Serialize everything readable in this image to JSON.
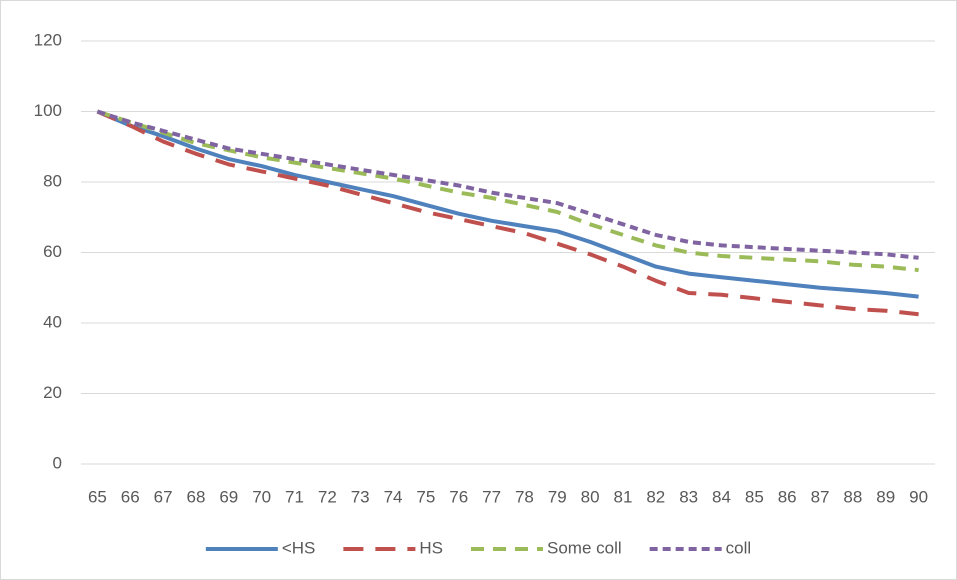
{
  "chart_data": {
    "type": "line",
    "categories": [
      "65",
      "66",
      "67",
      "68",
      "69",
      "70",
      "71",
      "72",
      "73",
      "74",
      "75",
      "76",
      "77",
      "78",
      "79",
      "80",
      "81",
      "82",
      "83",
      "84",
      "85",
      "86",
      "87",
      "88",
      "89",
      "90"
    ],
    "series": [
      {
        "name": "<HS",
        "color": "#4f81bd",
        "dash": "solid",
        "values": [
          100,
          96,
          93,
          89.5,
          86.5,
          84.5,
          82,
          80,
          78,
          76,
          73.5,
          71,
          69,
          67.5,
          66,
          63,
          59.5,
          56,
          54,
          53,
          52,
          51,
          50,
          49.3,
          48.5,
          47.5
        ]
      },
      {
        "name": "HS",
        "color": "#c0504d",
        "dash": "long-dash",
        "values": [
          100,
          96,
          91.5,
          88,
          85,
          83,
          81,
          79,
          76.5,
          74,
          71.5,
          69.5,
          67.5,
          65.5,
          62.5,
          59.5,
          56,
          52,
          48.5,
          48,
          47,
          46,
          45,
          44,
          43.5,
          42.5
        ]
      },
      {
        "name": "Some coll",
        "color": "#9bbb59",
        "dash": "dash",
        "values": [
          100,
          97,
          94,
          91,
          89,
          87,
          85.5,
          84,
          82.5,
          81,
          79,
          77,
          75.5,
          73.5,
          71.5,
          68,
          65,
          62,
          60,
          59,
          58.5,
          58,
          57.5,
          56.5,
          56,
          55
        ]
      },
      {
        "name": "coll",
        "color": "#8064a2",
        "dash": "short-dash",
        "values": [
          100,
          97,
          94.5,
          92,
          89.5,
          88,
          86.5,
          85,
          83.5,
          82,
          80.5,
          79,
          77,
          75.5,
          74,
          71,
          68,
          65,
          63,
          62,
          61.5,
          61,
          60.5,
          60,
          59.5,
          58.5
        ]
      }
    ],
    "ylim": [
      0,
      120
    ],
    "yticks": [
      0,
      20,
      40,
      60,
      80,
      100,
      120
    ],
    "grid": true,
    "legend": "bottom"
  }
}
